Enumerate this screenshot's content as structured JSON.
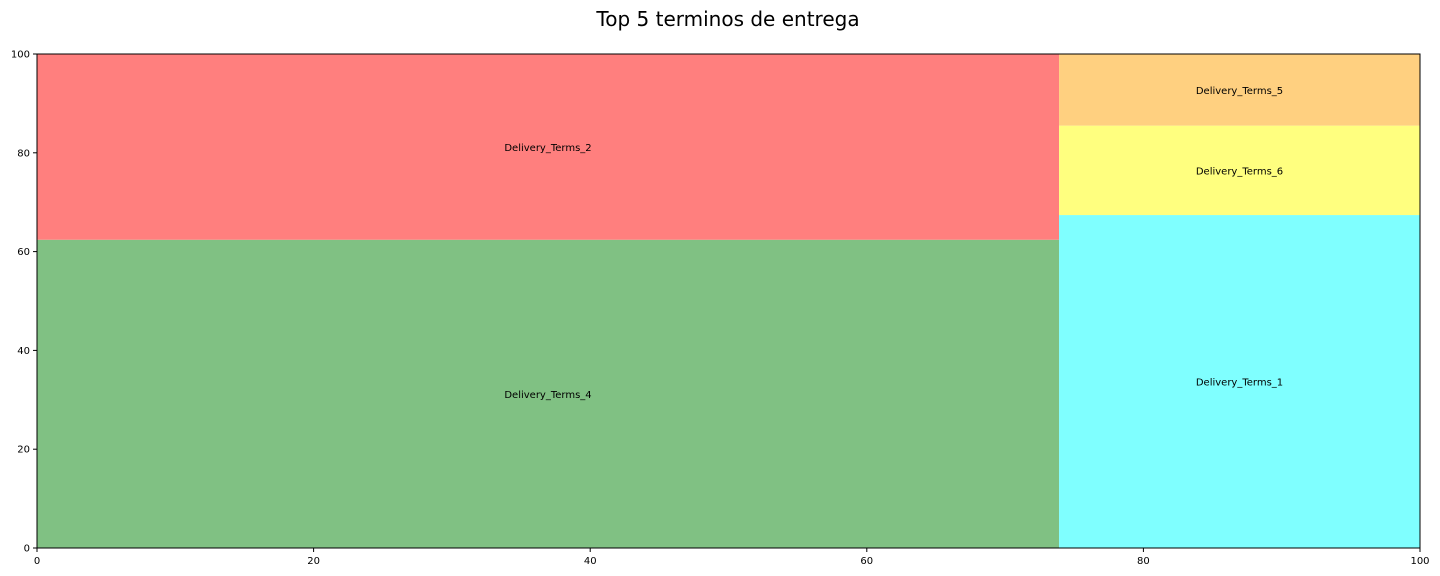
{
  "chart_data": {
    "type": "treemap",
    "title": "Top 5 terminos de entrega",
    "xlim": [
      0,
      100
    ],
    "ylim": [
      0,
      100
    ],
    "xticks": [
      "0",
      "20",
      "40",
      "60",
      "80",
      "100"
    ],
    "yticks": [
      "0",
      "20",
      "40",
      "60",
      "80",
      "100"
    ],
    "rectangles": [
      {
        "label": "Delivery_Terms_4",
        "x": 0,
        "y": 0,
        "dx": 73.9,
        "dy": 62.4,
        "color": "#80c183"
      },
      {
        "label": "Delivery_Terms_2",
        "x": 0,
        "y": 62.4,
        "dx": 73.9,
        "dy": 37.6,
        "color": "#ff7f7e"
      },
      {
        "label": "Delivery_Terms_1",
        "x": 73.9,
        "y": 0,
        "dx": 26.1,
        "dy": 67.4,
        "color": "#7fffff"
      },
      {
        "label": "Delivery_Terms_6",
        "x": 73.9,
        "y": 67.4,
        "dx": 26.1,
        "dy": 18.1,
        "color": "#ffff7f"
      },
      {
        "label": "Delivery_Terms_5",
        "x": 73.9,
        "y": 85.5,
        "dx": 26.1,
        "dy": 14.5,
        "color": "#ffd080"
      }
    ]
  }
}
